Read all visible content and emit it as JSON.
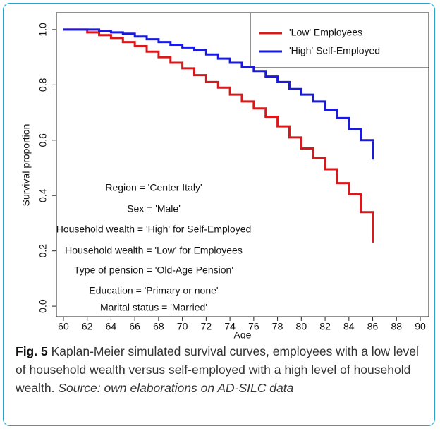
{
  "chart_data": {
    "type": "step",
    "x_label": "Age",
    "y_label": "Survival proportion",
    "xlim": [
      59.41,
      90.71
    ],
    "ylim": [
      -0.038,
      1.061
    ],
    "xticks": [
      60,
      62,
      64,
      66,
      68,
      70,
      72,
      74,
      76,
      78,
      80,
      82,
      84,
      86,
      88,
      90
    ],
    "yticks": [
      {
        "value": 0,
        "label": "0.0"
      },
      0.2,
      0.4,
      0.6,
      0.8,
      {
        "value": 1,
        "label": "1.0"
      }
    ],
    "legend": "top-right",
    "x": [
      60,
      61,
      62,
      63,
      64,
      65,
      66,
      67,
      68,
      69,
      70,
      71,
      72,
      73,
      74,
      75,
      76,
      77,
      78,
      79,
      80,
      81,
      82,
      83,
      84,
      85,
      86
    ],
    "series": [
      {
        "name": "'Low' Employees",
        "color": "#d7191c",
        "values": [
          1.0,
          1.0,
          0.99,
          0.98,
          0.97,
          0.955,
          0.94,
          0.92,
          0.9,
          0.88,
          0.86,
          0.835,
          0.81,
          0.79,
          0.765,
          0.74,
          0.715,
          0.685,
          0.65,
          0.61,
          0.57,
          0.535,
          0.495,
          0.445,
          0.405,
          0.34,
          0.3
        ],
        "final_value": 0.23
      },
      {
        "name": "'High' Self-Employed",
        "color": "#1a1adb",
        "values": [
          1.0,
          1.0,
          1.0,
          0.995,
          0.99,
          0.985,
          0.975,
          0.965,
          0.955,
          0.945,
          0.935,
          0.925,
          0.91,
          0.895,
          0.88,
          0.865,
          0.85,
          0.83,
          0.81,
          0.785,
          0.765,
          0.74,
          0.71,
          0.68,
          0.64,
          0.6,
          0.595
        ],
        "final_value": 0.53
      }
    ],
    "annotations": [
      "Region = 'Center Italy'",
      "Sex = 'Male'",
      "Household wealth = 'High' for Self-Employed",
      "Household wealth = 'Low' for Employees",
      "Type of pension = 'Old-Age Pension'",
      "Education = 'Primary or none'",
      "Marital status = 'Married'"
    ]
  },
  "caption": {
    "label": "Fig. 5",
    "text": "Kaplan-Meier simulated survival curves, employees with a low level of household wealth versus self-employed with a high level of household wealth.",
    "source": "Source: own elaborations on AD-SILC data"
  }
}
